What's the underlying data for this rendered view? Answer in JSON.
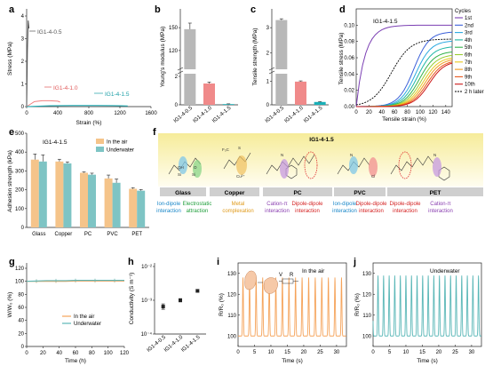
{
  "panels": {
    "a": {
      "letter": "a",
      "xlabel": "Strain (%)",
      "ylabel": "Stress (MPa)",
      "xticks": [
        "0",
        "400",
        "800",
        "1200",
        "1600"
      ],
      "yticks": [
        "0",
        "1",
        "2",
        "3",
        "4"
      ],
      "labels": [
        "IG1-4-0.5",
        "IG1-4-1.0",
        "IG1-4-1.5"
      ]
    },
    "b": {
      "letter": "b",
      "ylabel": "Young's modulus (MPa)",
      "ticks_low": [
        "0",
        "2"
      ],
      "ticks_high": [
        "120",
        "150"
      ]
    },
    "c": {
      "letter": "c",
      "ylabel": "Tensile strength (MPa)",
      "ticks_low": [
        "0",
        "1"
      ],
      "ticks_high": [
        "2",
        "3"
      ]
    },
    "d": {
      "letter": "d",
      "title": "IG1-4-1.5",
      "xlabel": "Tensile strain (%)",
      "ylabel": "Tensile stress (MPa)",
      "xticks": [
        "0",
        "20",
        "40",
        "60",
        "80",
        "100",
        "120",
        "140"
      ],
      "yticks": [
        "0.00",
        "0.02",
        "0.04",
        "0.06",
        "0.08",
        "0.10"
      ],
      "legend_title": "Cycles",
      "legend": [
        "1st",
        "2nd",
        "3rd",
        "4th",
        "5th",
        "6th",
        "7th",
        "8th",
        "9th",
        "10th",
        "2 h later"
      ],
      "colors": [
        "#7b3fb3",
        "#3a5fd9",
        "#2aa9e0",
        "#1fb7a5",
        "#33b24a",
        "#9acd32",
        "#e8c81c",
        "#f29a1d",
        "#e8561b",
        "#cc1818",
        "#000000"
      ]
    },
    "e": {
      "letter": "e",
      "title": "IG1-4-1.5",
      "ylabel": "Adhesion strength (kPa)",
      "yticks": [
        "0",
        "100",
        "200",
        "300",
        "400",
        "500"
      ],
      "legend": [
        "In the air",
        "Underwater"
      ]
    },
    "f": {
      "letter": "f",
      "title": "IG1-4-1.5",
      "substrates": [
        "Glass",
        "Copper",
        "PC",
        "PVC",
        "PET"
      ],
      "mechanisms": [
        {
          "l1": "Ion-dipole",
          "l2": "interaction",
          "color": "#1a87c8"
        },
        {
          "l1": "Electrostatic",
          "l2": "attraction",
          "color": "#1e9e3a"
        },
        {
          "l1": "Metal",
          "l2": "complexation",
          "color": "#e09a1a"
        },
        {
          "l1": "Cation-π",
          "l2": "interaction",
          "color": "#8a3fb0"
        },
        {
          "l1": "Dipole-dipole",
          "l2": "interaction",
          "color": "#d42020"
        },
        {
          "l1": "Ion-dipole",
          "l2": "interaction",
          "color": "#1a87c8"
        },
        {
          "l1": "Dipole-dipole",
          "l2": "interaction",
          "color": "#d42020"
        },
        {
          "l1": "Dipole-dipole",
          "l2": "interaction",
          "color": "#d42020"
        },
        {
          "l1": "Cation-π",
          "l2": "interaction",
          "color": "#8a3fb0"
        }
      ],
      "chem": {
        "si": "Si",
        "oh": "OH",
        "o": "O",
        "cu": "Cu",
        "cu2": "Cu²⁺",
        "cl": "Cl",
        "n": "N",
        "cf3": "F₃C",
        "s": "S"
      }
    },
    "g": {
      "letter": "g",
      "xlabel": "Time (h)",
      "ylabel": "W/W₀ (%)",
      "xticks": [
        "0",
        "20",
        "40",
        "60",
        "80",
        "100",
        "120"
      ],
      "yticks": [
        "0",
        "20",
        "40",
        "60",
        "80",
        "100",
        "120"
      ],
      "legend": [
        "In the air",
        "Underwater"
      ]
    },
    "h": {
      "letter": "h",
      "ylabel": "Conductivity (S m⁻¹)",
      "yticks": [
        "10⁻⁴",
        "10⁻³",
        "10⁻²"
      ]
    },
    "i": {
      "letter": "i",
      "note": "In the air",
      "xlabel": "Time (s)",
      "ylabel": "R/R₀ (%)",
      "xticks": [
        "0",
        "5",
        "10",
        "15",
        "20",
        "25",
        "30"
      ],
      "yticks": [
        "100",
        "110",
        "120",
        "130"
      ],
      "circuit_v": "V",
      "circuit_r": "R"
    },
    "j": {
      "letter": "j",
      "note": "Underwater",
      "xlabel": "Time (s)",
      "ylabel": "R/R₀ (%)",
      "xticks": [
        "0",
        "5",
        "10",
        "15",
        "20",
        "25",
        "30"
      ],
      "yticks": [
        "100",
        "110",
        "120",
        "130"
      ]
    }
  },
  "chart_data": [
    {
      "panel": "a",
      "type": "line",
      "xlabel": "Strain (%)",
      "ylabel": "Stress (MPa)",
      "xlim": [
        0,
        1600
      ],
      "ylim": [
        0,
        4
      ],
      "series": [
        {
          "name": "IG1-4-0.5",
          "color": "#555555",
          "x": [
            0,
            10,
            20,
            30
          ],
          "y": [
            0,
            2.5,
            3.8,
            3.45
          ]
        },
        {
          "name": "IG1-4-1.0",
          "color": "#f08080",
          "x": [
            0,
            100,
            200,
            300,
            400,
            430
          ],
          "y": [
            0,
            0.22,
            0.26,
            0.26,
            0.24,
            0.2
          ]
        },
        {
          "name": "IG1-4-1.5",
          "color": "#1ab0b8",
          "x": [
            0,
            300,
            600,
            900,
            1200,
            1300
          ],
          "y": [
            0,
            0.04,
            0.05,
            0.05,
            0.04,
            0.03
          ]
        }
      ]
    },
    {
      "panel": "b",
      "type": "bar",
      "ylabel": "Young's modulus (MPa)",
      "categories": [
        "IG1-4-0.5",
        "IG1-4-1.0",
        "IG1-4-1.5"
      ],
      "values": [
        148,
        1.5,
        0.05
      ],
      "errors": [
        8,
        0.1,
        0.02
      ],
      "colors": [
        "#b8b8b8",
        "#f08a8a",
        "#1ab0b8"
      ]
    },
    {
      "panel": "c",
      "type": "bar",
      "ylabel": "Tensile strength (MPa)",
      "categories": [
        "IG1-4-0.5",
        "IG1-4-1.0",
        "IG1-4-1.5"
      ],
      "values": [
        3.3,
        0.98,
        0.12
      ],
      "errors": [
        0.05,
        0.03,
        0.02
      ],
      "colors": [
        "#b8b8b8",
        "#f08a8a",
        "#1ab0b8"
      ]
    },
    {
      "panel": "d",
      "type": "line",
      "xlabel": "Tensile strain (%)",
      "ylabel": "Tensile stress (MPa)",
      "xlim": [
        0,
        150
      ],
      "ylim": [
        0,
        0.12
      ],
      "first_cycle_max": 0.1,
      "later_cycles_max": [
        0.092,
        0.081,
        0.074,
        0.068,
        0.064,
        0.061,
        0.059,
        0.057,
        0.056
      ],
      "recovery_2h_max": 0.083
    },
    {
      "panel": "e",
      "type": "bar",
      "ylabel": "Adhesion strength (kPa)",
      "categories": [
        "Glass",
        "Copper",
        "PC",
        "PVC",
        "PET"
      ],
      "ylim": [
        0,
        500
      ],
      "series": [
        {
          "name": "In the air",
          "color": "#f5c48a",
          "values": [
            360,
            350,
            290,
            260,
            205
          ],
          "errors": [
            30,
            12,
            5,
            18,
            6
          ]
        },
        {
          "name": "Underwater",
          "color": "#7ec4c4",
          "values": [
            350,
            340,
            280,
            237,
            195
          ],
          "errors": [
            35,
            8,
            8,
            20,
            6
          ]
        }
      ]
    },
    {
      "panel": "g",
      "type": "line",
      "xlabel": "Time (h)",
      "ylabel": "W/W₀ (%)",
      "xlim": [
        0,
        120
      ],
      "ylim": [
        0,
        120
      ],
      "series": [
        {
          "name": "In the air",
          "color": "#f5a35a",
          "x": [
            0,
            12,
            24,
            36,
            48,
            60,
            72,
            84,
            96,
            108,
            120
          ],
          "y": [
            100,
            100,
            100,
            100,
            100,
            100.5,
            100.5,
            100.5,
            100.5,
            100.5,
            100.5
          ]
        },
        {
          "name": "Underwater",
          "color": "#5cb8b8",
          "x": [
            0,
            12,
            24,
            36,
            48,
            60,
            72,
            84,
            96,
            108,
            120
          ],
          "y": [
            100,
            100.5,
            101,
            101,
            101,
            101.5,
            101.5,
            101.5,
            101.5,
            101.5,
            101.5
          ]
        }
      ]
    },
    {
      "panel": "h",
      "type": "scatter",
      "ylabel": "Conductivity (S m⁻¹)",
      "yscale": "log",
      "ylim": [
        0.0001,
        0.01
      ],
      "categories": [
        "IG1-4-0.5",
        "IG1-4-1.0",
        "IG1-4-1.5"
      ],
      "values": [
        0.00065,
        0.001,
        0.0019
      ],
      "errors_log": [
        0.08,
        0.05,
        0.04
      ]
    },
    {
      "panel": "i",
      "type": "line",
      "xlabel": "Time (s)",
      "ylabel": "R/R₀ (%)",
      "xlim": [
        0,
        33
      ],
      "ylim": [
        95,
        135
      ],
      "baseline": 100,
      "peak": 128,
      "period_s": 2.0,
      "first_peak_s": 1.5,
      "color": "#f5a35a"
    },
    {
      "panel": "j",
      "type": "line",
      "xlabel": "Time (s)",
      "ylabel": "R/R₀ (%)",
      "xlim": [
        0,
        33
      ],
      "ylim": [
        95,
        135
      ],
      "baseline": 100,
      "peak": 129,
      "period_s": 1.7,
      "first_peak_s": 1.5,
      "color": "#5cb8b8"
    }
  ]
}
